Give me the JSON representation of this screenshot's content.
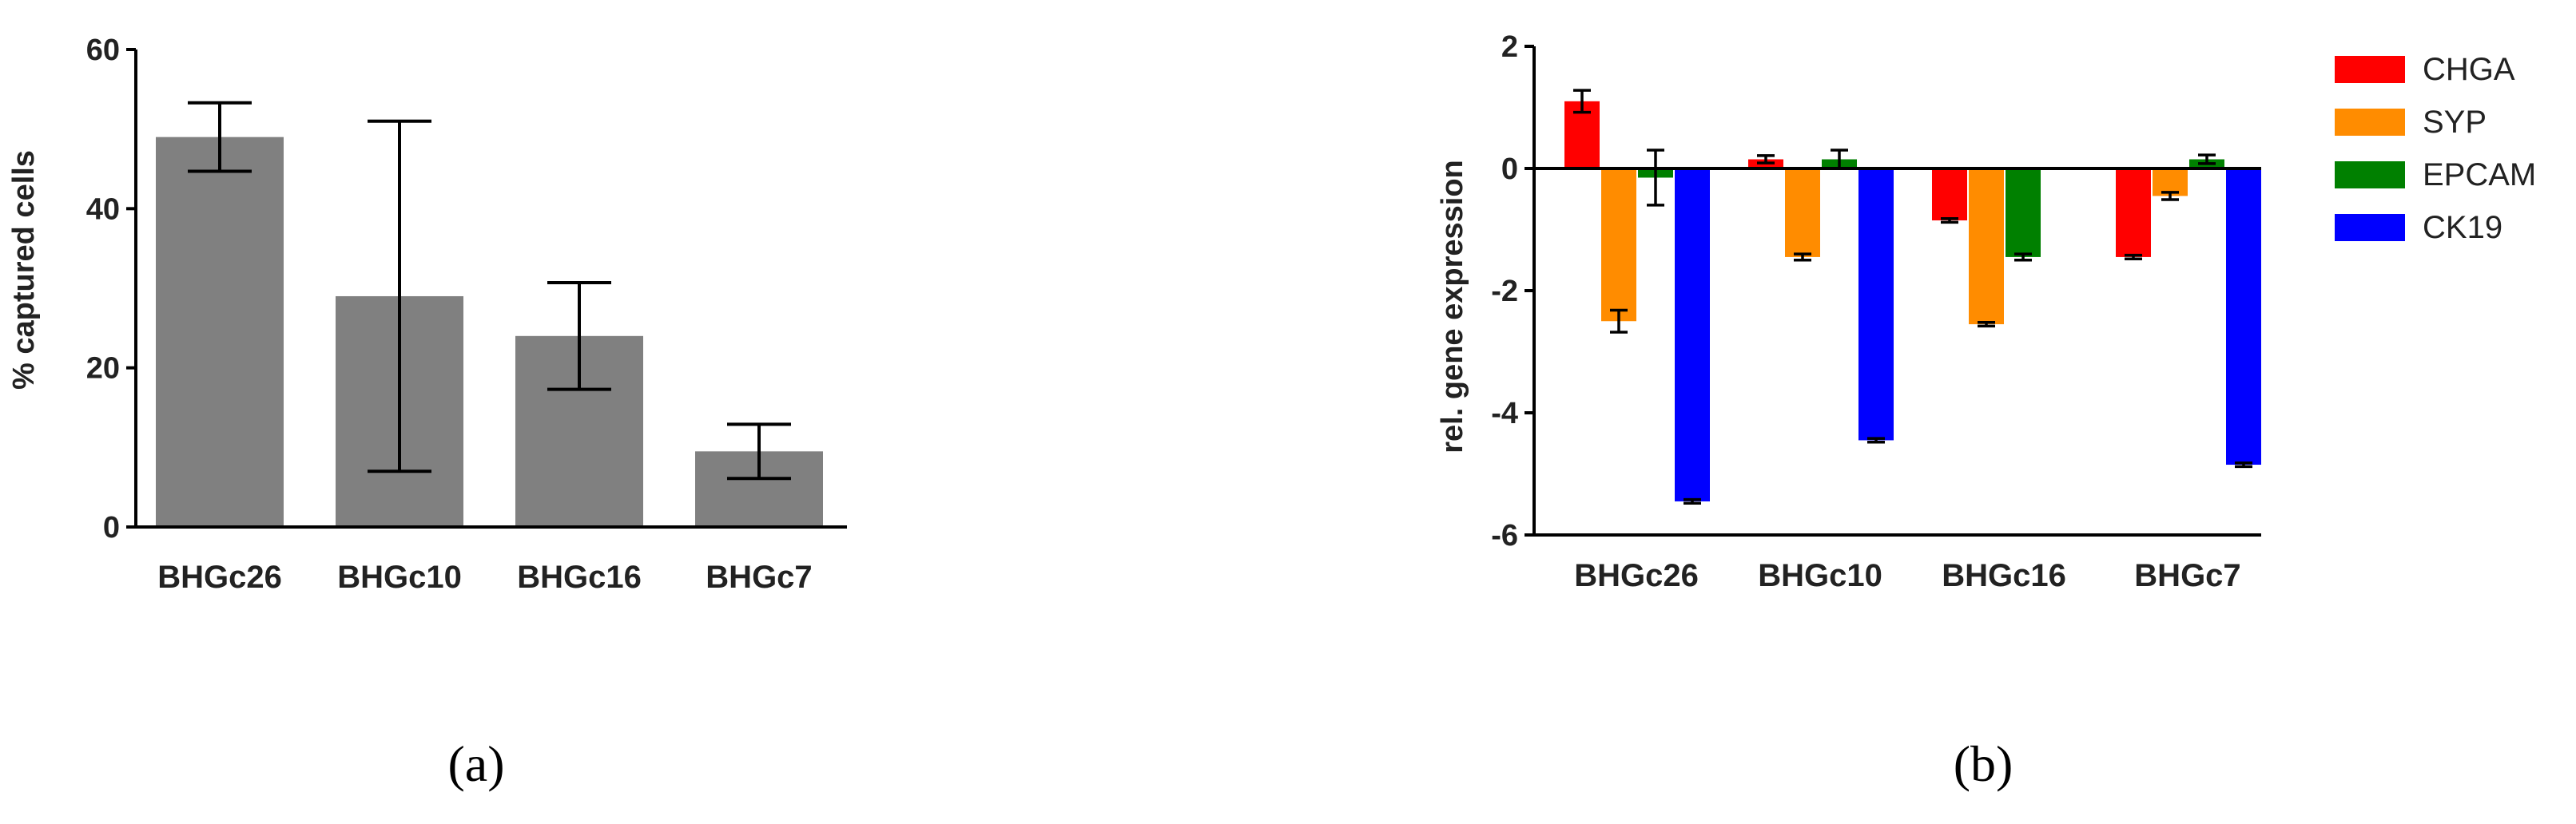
{
  "chart_data": [
    {
      "type": "bar",
      "panel_label": "(a)",
      "categories": [
        "BHGc26",
        "BHGc10",
        "BHGc16",
        "BHGc7"
      ],
      "values": [
        49,
        29,
        24,
        9.5
      ],
      "errors": [
        4.3,
        22,
        6.7,
        3.4
      ],
      "color": "#808080",
      "ylabel": "% captured cells",
      "xlabel": "",
      "ylim": [
        0,
        60
      ],
      "yticks": [
        "0",
        "20",
        "40",
        "60"
      ],
      "grid": false
    },
    {
      "type": "bar",
      "panel_label": "(b)",
      "categories": [
        "BHGc26",
        "BHGc10",
        "BHGc16",
        "BHGc7"
      ],
      "series": [
        {
          "name": "CHGA",
          "color": "#ff0000",
          "values": [
            1.1,
            0.15,
            -0.85,
            -1.45
          ],
          "errors": [
            0.18,
            0.06,
            0.03,
            0.03
          ]
        },
        {
          "name": "SYP",
          "color": "#ff8c00",
          "values": [
            -2.5,
            -1.45,
            -2.55,
            -0.45
          ],
          "errors": [
            0.18,
            0.05,
            0.03,
            0.06
          ]
        },
        {
          "name": "EPCAM",
          "color": "#008000",
          "values": [
            -0.15,
            0.15,
            -1.45,
            0.15
          ],
          "errors": [
            0.45,
            0.15,
            0.05,
            0.07
          ]
        },
        {
          "name": "CK19",
          "color": "#0000ff",
          "values": [
            -5.45,
            -4.45,
            0,
            -4.85
          ],
          "errors": [
            0.03,
            0.03,
            0,
            0.03
          ]
        }
      ],
      "ylabel": "rel. gene expression",
      "xlabel": "",
      "ylim": [
        -6,
        2
      ],
      "yticks": [
        "-6",
        "-4",
        "-2",
        "0",
        "2"
      ],
      "grid": false,
      "legend_position": "right"
    }
  ]
}
